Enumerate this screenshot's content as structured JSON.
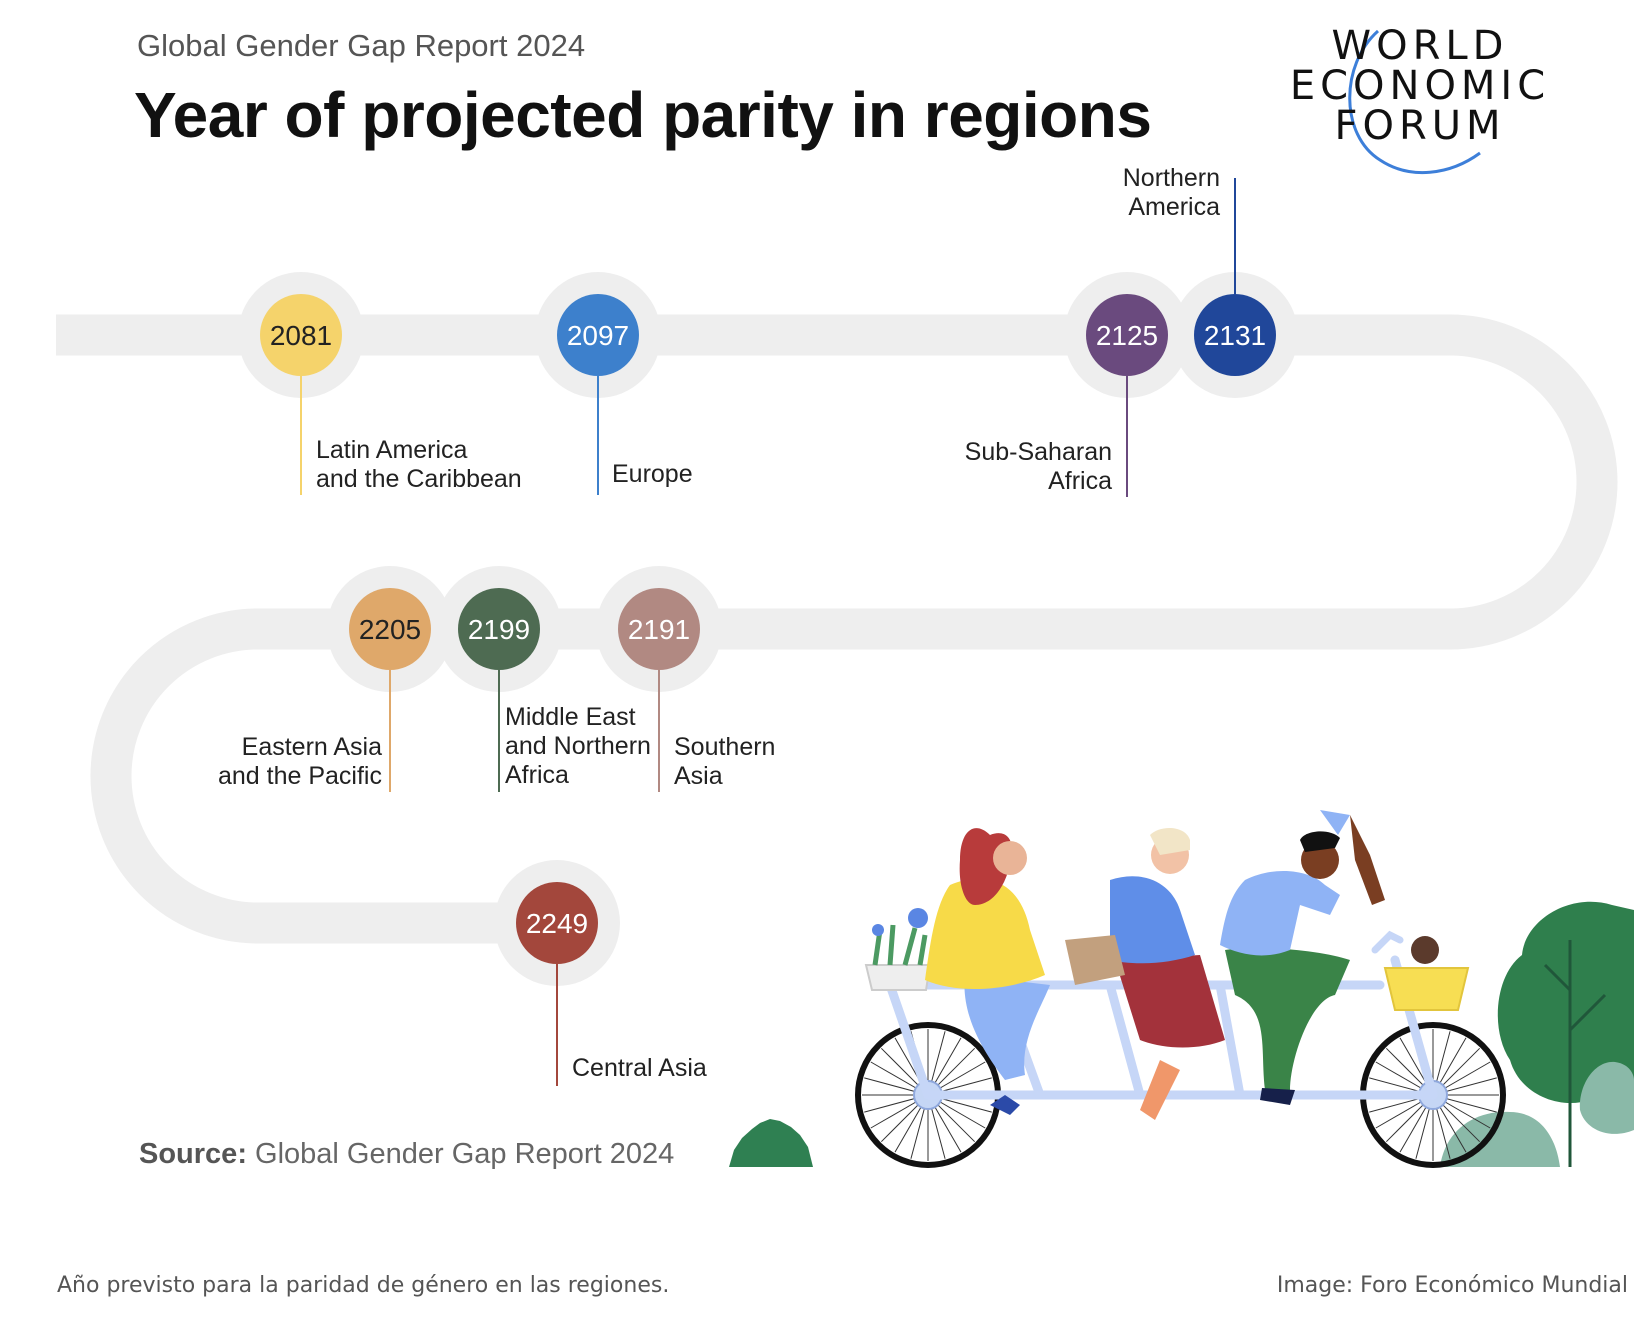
{
  "header": {
    "subtitle": "Global Gender Gap Report 2024",
    "title": "Year of projected parity in regions"
  },
  "logo": {
    "lines": [
      "WORLD",
      "ECONOMIC",
      "FORUM"
    ],
    "arc_color": "#3d7fd9"
  },
  "milestones": [
    {
      "year": "2081",
      "region": "Latin America\nand the Caribbean",
      "color": "#f5d36b",
      "text_color": "#222222"
    },
    {
      "year": "2097",
      "region": "Europe",
      "color": "#3d80cc",
      "text_color": "#ffffff"
    },
    {
      "year": "2125",
      "region": "Sub-Saharan\nAfrica",
      "color": "#6a4a7e",
      "text_color": "#ffffff"
    },
    {
      "year": "2131",
      "region": "Northern\nAmerica",
      "color": "#20479a",
      "text_color": "#ffffff"
    },
    {
      "year": "2191",
      "region": "Southern\nAsia",
      "color": "#b18982",
      "text_color": "#ffffff"
    },
    {
      "year": "2199",
      "region": "Middle East\nand Northern\nAfrica",
      "color": "#4e6b52",
      "text_color": "#ffffff"
    },
    {
      "year": "2205",
      "region": "Eastern Asia\nand the Pacific",
      "color": "#dfa86a",
      "text_color": "#222222"
    },
    {
      "year": "2249",
      "region": "Central Asia",
      "color": "#a3473c",
      "text_color": "#ffffff"
    }
  ],
  "path_color": "#eeeeee",
  "source": {
    "label": "Source:",
    "text": "Global Gender Gap Report 2024"
  },
  "footer": {
    "caption": "Año previsto para la paridad de género en las regiones.",
    "credit": "Image: Foro Económico Mundial"
  }
}
